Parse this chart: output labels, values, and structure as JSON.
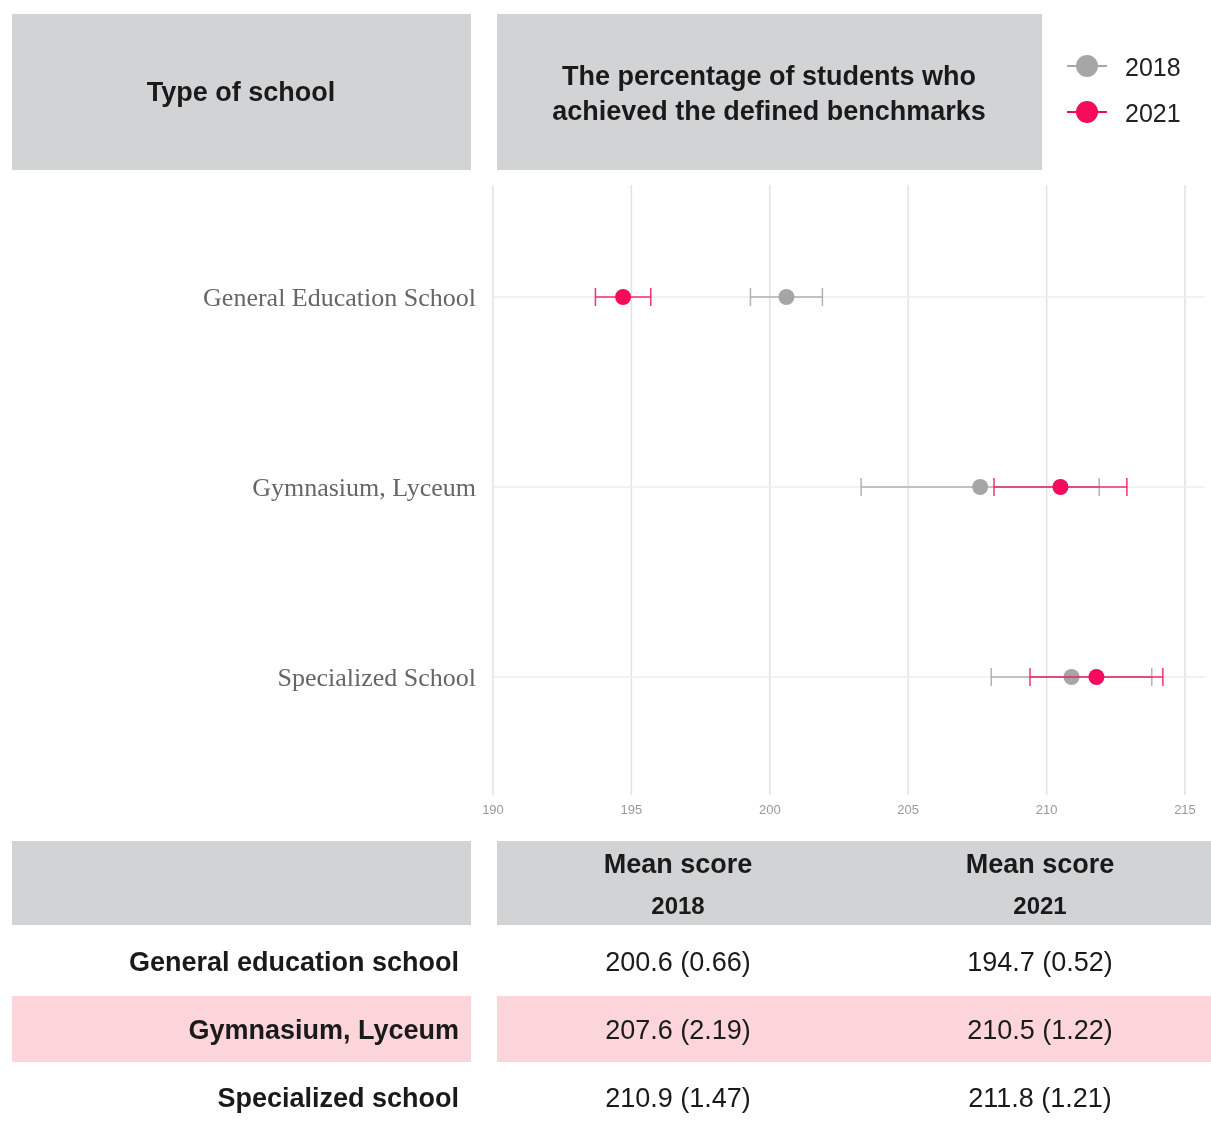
{
  "chart_data": {
    "type": "scatter",
    "orientation": "horizontal",
    "title": "The percentage of students who achieved the defined benchmarks",
    "ylabel": "Type of school",
    "categories": [
      "General Education School",
      "Gymnasium, Lyceum",
      "Specialized School"
    ],
    "series": [
      {
        "name": "2018",
        "color": "#a6a6a6",
        "values": [
          200.6,
          207.6,
          210.9
        ],
        "errors": [
          1.3,
          4.3,
          2.9
        ]
      },
      {
        "name": "2021",
        "color": "#f50a5c",
        "values": [
          194.7,
          210.5,
          211.8
        ],
        "errors": [
          1.0,
          2.4,
          2.4
        ]
      }
    ],
    "xlim": [
      190,
      215
    ],
    "xticks": [
      190,
      195,
      200,
      205,
      210,
      215
    ],
    "grid": true,
    "legend": "top right",
    "marker": "circle",
    "annotations": [
      "Mean score 2018",
      "Mean score 2021",
      "General education school",
      "200.6 (0.66)",
      "194.7 (0.52)",
      "Gymnasium, Lyceum",
      "207.6 (2.19)",
      "210.5 (1.22)",
      "Specialized school",
      "210.9 (1.47)",
      "211.8 (1.21)"
    ]
  }
}
